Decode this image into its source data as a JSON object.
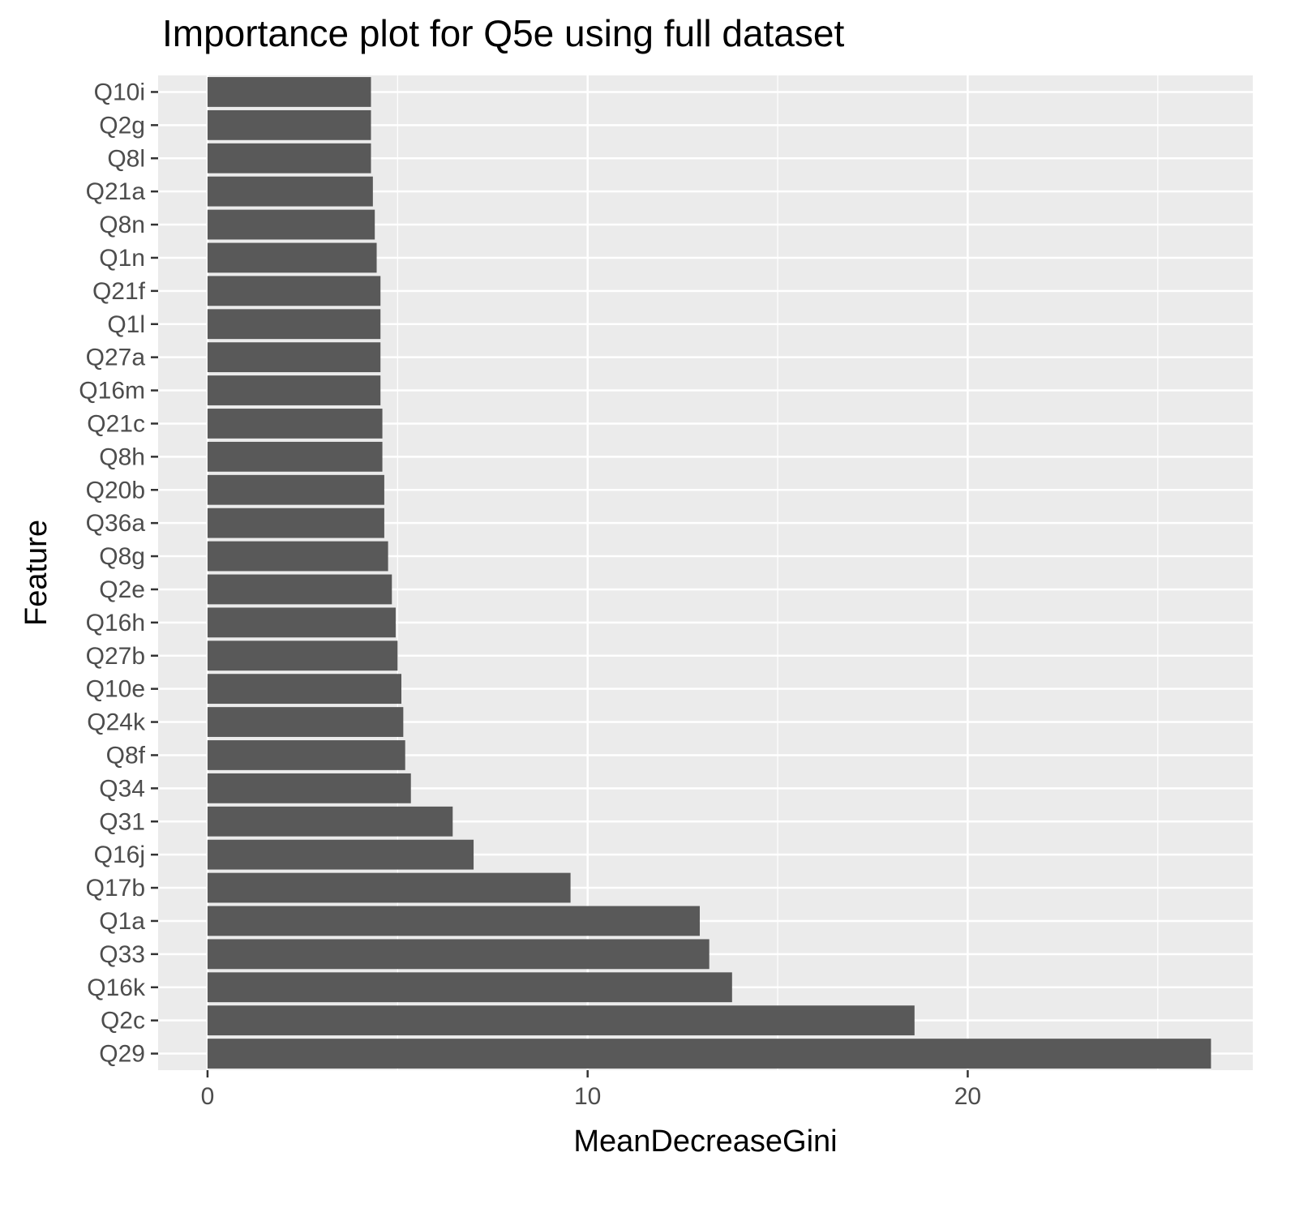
{
  "chart_data": {
    "type": "bar",
    "orientation": "horizontal",
    "title": "Importance plot for Q5e using full dataset",
    "xlabel": "MeanDecreaseGini",
    "ylabel": "Feature",
    "xlim": [
      -1.3,
      27.5
    ],
    "xticks": [
      0,
      10,
      20
    ],
    "grid": true,
    "legend": "none",
    "colors": {
      "bar": "#595959",
      "panel": "#ebebeb",
      "grid": "#ffffff",
      "tick_text": "#4d4d4d"
    },
    "categories": [
      "Q10i",
      "Q2g",
      "Q8l",
      "Q21a",
      "Q8n",
      "Q1n",
      "Q21f",
      "Q1l",
      "Q27a",
      "Q16m",
      "Q21c",
      "Q8h",
      "Q20b",
      "Q36a",
      "Q8g",
      "Q2e",
      "Q16h",
      "Q27b",
      "Q10e",
      "Q24k",
      "Q8f",
      "Q34",
      "Q31",
      "Q16j",
      "Q17b",
      "Q1a",
      "Q33",
      "Q16k",
      "Q2c",
      "Q29"
    ],
    "values": [
      4.3,
      4.3,
      4.3,
      4.35,
      4.4,
      4.45,
      4.55,
      4.55,
      4.55,
      4.55,
      4.6,
      4.6,
      4.65,
      4.65,
      4.75,
      4.85,
      4.95,
      5.0,
      5.1,
      5.15,
      5.2,
      5.35,
      6.45,
      7.0,
      9.55,
      12.95,
      13.2,
      13.8,
      18.6,
      26.4
    ]
  }
}
